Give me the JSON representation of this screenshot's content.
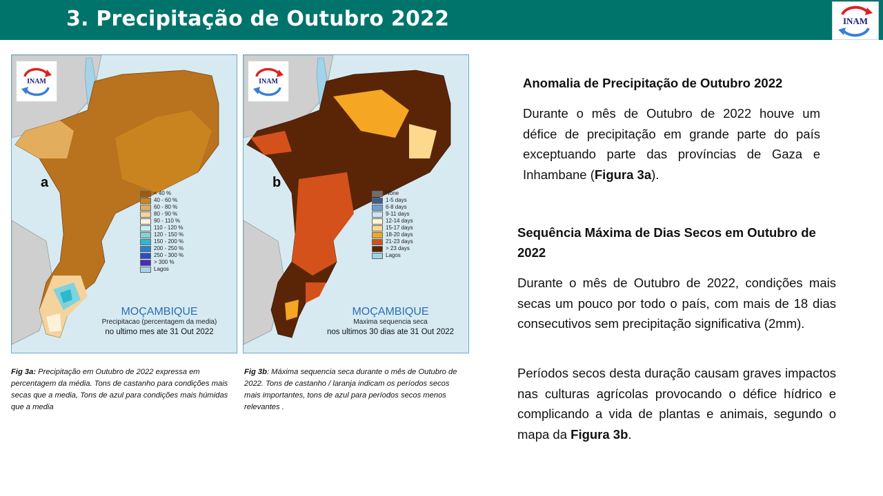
{
  "header": {
    "title": "3. Precipitação de Outubro 2022",
    "bg_color": "#00736b",
    "logo_text": "INAM"
  },
  "map_a": {
    "logo_text": "INAM",
    "panel_letter": "a",
    "legend": [
      {
        "label": "< 40 %",
        "color": "#9c5a12"
      },
      {
        "label": "40 - 60 %",
        "color": "#c9841f"
      },
      {
        "label": "60 - 80 %",
        "color": "#e3ad5e"
      },
      {
        "label": "80 - 90 %",
        "color": "#f4d39d"
      },
      {
        "label": "90 - 110 %",
        "color": "#fbf2d9"
      },
      {
        "label": "110 - 120 %",
        "color": "#c7ecec"
      },
      {
        "label": "120 - 150 %",
        "color": "#7fd3dd"
      },
      {
        "label": "150 - 200 %",
        "color": "#2cb8cf"
      },
      {
        "label": "200 - 250 %",
        "color": "#2b7fd0"
      },
      {
        "label": "250 - 300 %",
        "color": "#2f4bc4"
      },
      {
        "label": "> 300 %",
        "color": "#4a2bc2"
      },
      {
        "label": "Lagos",
        "color": "#a6d3e8"
      }
    ],
    "caption_country": "MOÇAMBIQUE",
    "caption_line2": "Precipitacao (percentagem da media)",
    "caption_line3": "no ultimo mes ate 31 Out 2022"
  },
  "map_b": {
    "logo_text": "INAM",
    "panel_letter": "b",
    "legend": [
      {
        "label": "None",
        "color": "#6e6e6e"
      },
      {
        "label": "1-5 days",
        "color": "#3d5f8a"
      },
      {
        "label": "6-8 days",
        "color": "#6f9fd1"
      },
      {
        "label": "9-11 days",
        "color": "#cfe3f0"
      },
      {
        "label": "12-14 days",
        "color": "#fff6cf"
      },
      {
        "label": "15-17 days",
        "color": "#fcd98c"
      },
      {
        "label": "18-20 days",
        "color": "#f5a623"
      },
      {
        "label": "21-23 days",
        "color": "#d4511b"
      },
      {
        "label": "> 23 days",
        "color": "#5a2507"
      },
      {
        "label": "Lagos",
        "color": "#9fd4ea"
      }
    ],
    "caption_country": "MOÇAMBIQUE",
    "caption_line2": "Maxima sequencia seca",
    "caption_line3": "nos ultimos 30 dias ate 31 Out 2022"
  },
  "fig_3a": {
    "label": "Fig 3a:",
    "text": " Precipitação em Outubro de 2022  expressa em percentagem da média. Tons de castanho para condições mais secas que a media, Tons de azul para condições mais húmidas que a media"
  },
  "fig_3b": {
    "label": "Fig 3b",
    "text": ": Máxima sequencia seca durante o mês de Outubro  de 2022.  Tons de castanho / laranja indicam os períodos secos mais importantes, tons de azul para períodos secos menos relevantes ."
  },
  "section1": {
    "title": "Anomalia de Precipitação de Outubro 2022",
    "body_pre": "Durante o mês de Outubro de 2022 houve um défice de precipitação em grande parte do país exceptuando  parte das províncias de Gaza e Inhambane (",
    "body_bold": "Figura 3a",
    "body_post": ")."
  },
  "section2": {
    "title": "Sequência Máxima de Dias Secos em Outubro de 2022",
    "para1": "Durante o mês de Outubro de  2022, condições mais secas um pouco por todo o país, com mais de 18 dias consecutivos sem precipitação significativa (2mm).",
    "para2_pre": "Períodos secos desta duração causam graves impactos nas culturas agrícolas  provocando o défice hídrico e complicando a vida de plantas e animais, segundo o mapa da ",
    "para2_bold": "Figura 3b",
    "para2_post": "."
  }
}
